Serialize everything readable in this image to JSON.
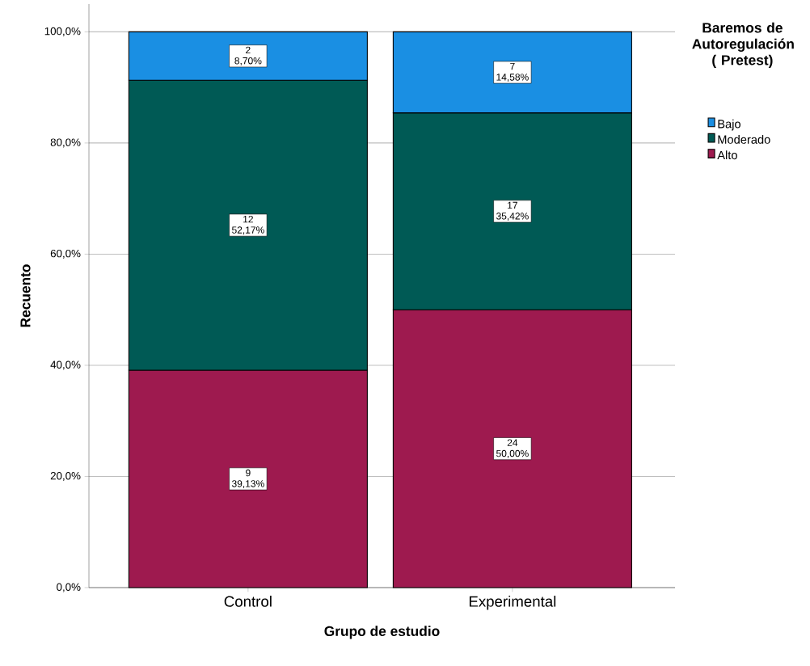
{
  "chart_data": {
    "type": "bar",
    "stacked": true,
    "categories": [
      "Control",
      "Experimental"
    ],
    "xlabel": "Grupo de estudio",
    "ylabel": "Recuento",
    "legend_title": "Baremos de Autoregulación ( Pretest)",
    "series": [
      {
        "name": "Alto",
        "color": "#9e1a4f",
        "values": [
          39.13,
          50.0
        ],
        "value_labels": [
          "9 39,13%",
          "24 50,00%"
        ]
      },
      {
        "name": "Moderado",
        "color": "#005a55",
        "values": [
          52.17,
          35.42
        ],
        "value_labels": [
          "12 52,17%",
          "17 35,42%"
        ]
      },
      {
        "name": "Bajo",
        "color": "#1a8fe3",
        "values": [
          8.7,
          14.58
        ],
        "value_labels": [
          "2 8,70%",
          "7 14,58%"
        ]
      }
    ],
    "ylim": [
      0,
      105
    ],
    "yticks": [
      {
        "value": 0,
        "label": "0,0%"
      },
      {
        "value": 20,
        "label": "20,0%"
      },
      {
        "value": 40,
        "label": "40,0%"
      },
      {
        "value": 60,
        "label": "60,0%"
      },
      {
        "value": 80,
        "label": "80,0%"
      },
      {
        "value": 100,
        "label": "100,0%"
      }
    ],
    "grid": "y",
    "legend": "top right"
  }
}
